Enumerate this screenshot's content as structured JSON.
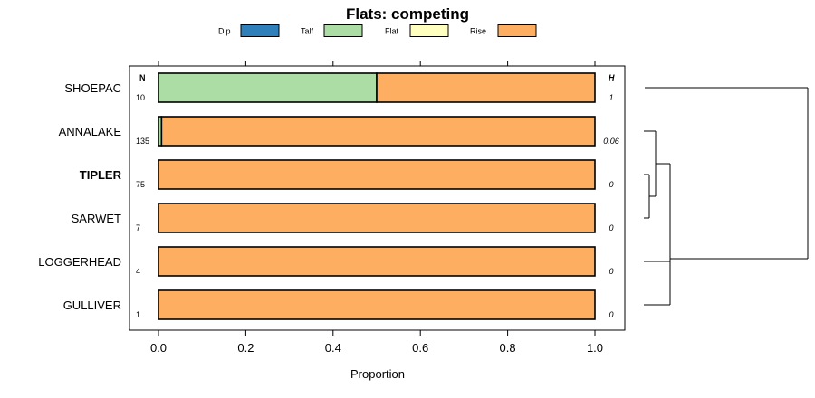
{
  "chart_data": {
    "type": "bar",
    "orientation": "horizontal",
    "stacked": true,
    "title": "Flats: competing",
    "xlabel": "Proportion",
    "ylabel": "",
    "xlim": [
      0,
      1
    ],
    "x_ticks": [
      "0.0",
      "0.2",
      "0.4",
      "0.6",
      "0.8",
      "1.0"
    ],
    "legend_position": "top",
    "series": [
      {
        "name": "Dip",
        "color": "#2e7fba"
      },
      {
        "name": "Talf",
        "color": "#abdda4"
      },
      {
        "name": "Flat",
        "color": "#ffffbf"
      },
      {
        "name": "Rise",
        "color": "#fdae61"
      }
    ],
    "n_header": "N",
    "h_header": "H",
    "categories": [
      {
        "label": "SHOEPAC",
        "bold": false,
        "n": "10",
        "h": "1",
        "values": [
          0,
          0.5,
          0,
          0.5
        ]
      },
      {
        "label": "ANNALAKE",
        "bold": false,
        "n": "135",
        "h": "0.06",
        "values": [
          0,
          0.007,
          0,
          0.993
        ]
      },
      {
        "label": "TIPLER",
        "bold": true,
        "n": "75",
        "h": "0",
        "values": [
          0,
          0,
          0,
          1
        ]
      },
      {
        "label": "SARWET",
        "bold": false,
        "n": "7",
        "h": "0",
        "values": [
          0,
          0,
          0,
          1
        ]
      },
      {
        "label": "LOGGERHEAD",
        "bold": false,
        "n": "4",
        "h": "0",
        "values": [
          0,
          0,
          0,
          1
        ]
      },
      {
        "label": "GULLIVER",
        "bold": false,
        "n": "1",
        "h": "0",
        "values": [
          0,
          0,
          0,
          1
        ]
      }
    ],
    "dendrogram": {
      "merges": [
        {
          "left": "TIPLER",
          "right": "SARWET"
        },
        {
          "left": "ANNALAKE",
          "right": "TIPLER+SARWET"
        },
        {
          "left": "LOGGERHEAD",
          "right": "GULLIVER"
        },
        {
          "left": "ANNALAKE+TIPLER+SARWET",
          "right": "LOGGERHEAD+GULLIVER"
        },
        {
          "left": "SHOEPAC",
          "right": "REST"
        }
      ]
    }
  }
}
